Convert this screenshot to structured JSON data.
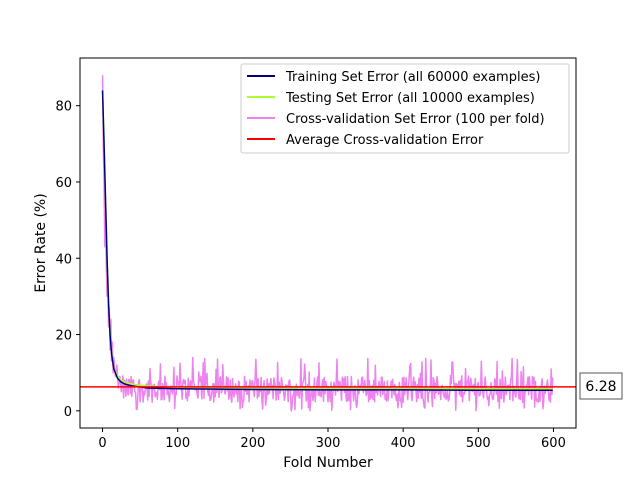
{
  "chart_data": {
    "type": "line",
    "title": "",
    "xlabel": "Fold Number",
    "ylabel": "Error Rate (%)",
    "xlim": [
      -30,
      630
    ],
    "ylim": [
      -4.5,
      92.5
    ],
    "xticks": [
      0,
      100,
      200,
      300,
      400,
      500,
      600
    ],
    "yticks": [
      0,
      20,
      40,
      60,
      80
    ],
    "legend_position": "top-right",
    "fold_range": [
      0,
      599
    ],
    "series": [
      {
        "name": "Training Set Error (all 60000 examples)",
        "color": "#00007f",
        "x": [
          0,
          2,
          4,
          6,
          8,
          10,
          12,
          15,
          20,
          25,
          30,
          40,
          60,
          100,
          200,
          300,
          400,
          500,
          599
        ],
        "values": [
          84,
          70,
          55,
          40,
          28,
          20,
          15,
          11,
          8.5,
          7.5,
          7,
          6.5,
          6,
          5.8,
          5.6,
          5.5,
          5.5,
          5.4,
          5.4
        ]
      },
      {
        "name": "Testing Set Error (all 10000 examples)",
        "color": "#adff2f",
        "x": [
          0,
          2,
          4,
          6,
          8,
          10,
          12,
          15,
          20,
          25,
          30,
          40,
          60,
          100,
          200,
          300,
          400,
          500,
          599
        ],
        "values": [
          84,
          71,
          56,
          41,
          29,
          21,
          15.5,
          11.5,
          9,
          8,
          7.5,
          7,
          6.5,
          6.2,
          6,
          5.9,
          5.9,
          5.8,
          5.8
        ]
      },
      {
        "name": "Cross-validation Set Error (100 per fold)",
        "color": "#ee82ee",
        "x": [
          0,
          1,
          2,
          3,
          4,
          5,
          6,
          7,
          8,
          9,
          10,
          11,
          12,
          13,
          14,
          15,
          17,
          19,
          21,
          23,
          25
        ],
        "values": [
          88,
          70,
          60,
          43,
          52,
          38,
          30,
          35,
          22,
          27,
          16,
          24,
          13,
          18,
          10,
          14,
          9,
          12,
          6,
          9,
          5
        ],
        "steady_mean": 5.7,
        "steady_min": 0,
        "steady_max": 14
      },
      {
        "name": "Average Cross-validation Error",
        "color": "#ff0000",
        "x": [
          -30,
          630
        ],
        "values": [
          6.28,
          6.28
        ]
      }
    ],
    "annotation": "6.28"
  }
}
